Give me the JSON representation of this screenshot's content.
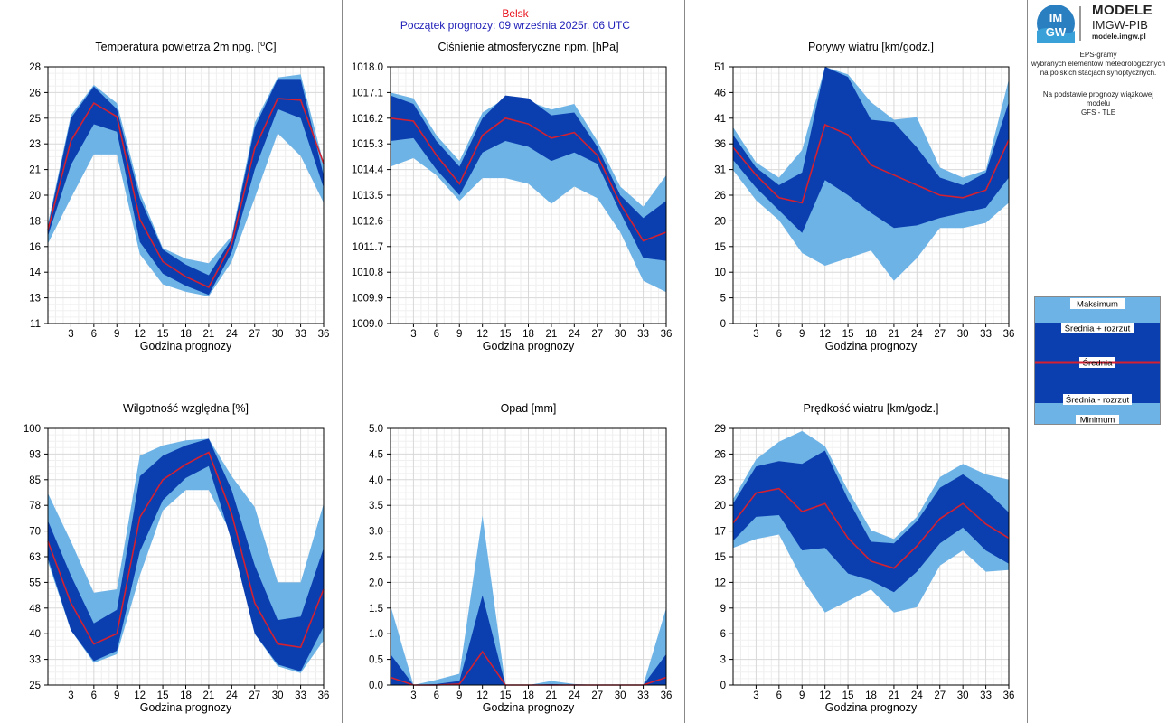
{
  "header": {
    "station": "Belsk",
    "forecast_start": "Początek prognozy: 09 września 2025r. 06 UTC"
  },
  "brand": {
    "logo_text_top": "IM",
    "logo_text_bottom": "GW",
    "title": "MODELE",
    "subtitle": "IMGW-PIB",
    "site": "modele.imgw.pl"
  },
  "description": {
    "lines": [
      "EPS-gramy",
      "wybranych elementów meteorologicznych",
      "na polskich stacjach  synoptycznych."
    ],
    "model_lines": [
      "Na podstawie prognozy wiązkowej modelu",
      "GFS - TLE"
    ]
  },
  "legend": {
    "items": [
      "Maksimum",
      "Średnia + rozrzut",
      "Średnia",
      "Średnia - rozrzut",
      "Minimum"
    ]
  },
  "colors": {
    "light_band": "#6eb3e6",
    "dark_band": "#0b3fb0",
    "mean_line": "#d42030",
    "station_text": "#e8101a",
    "start_text": "#1f1fb8",
    "panel_border": "#888888"
  },
  "chart_data": [
    {
      "type": "area",
      "title": "Temperatura powietrza 2m npg. [",
      "title_sup": "o",
      "title_suffix": "C]",
      "xlabel": "Godzina prognozy",
      "x": [
        0,
        3,
        6,
        9,
        12,
        15,
        18,
        21,
        24,
        27,
        30,
        33,
        36
      ],
      "xticks": [
        3,
        6,
        9,
        12,
        15,
        18,
        21,
        24,
        27,
        30,
        33,
        36
      ],
      "ylim": [
        11,
        28
      ],
      "yticks": [
        "11",
        "13",
        "14",
        "16",
        "18",
        "20",
        "21",
        "23",
        "25",
        "26",
        "28"
      ],
      "grid": true,
      "series": [
        {
          "name": "Maksimum",
          "values": [
            17.6,
            24.8,
            26.8,
            25.6,
            19.7,
            16.0,
            15.3,
            15.0,
            16.8,
            24.3,
            27.3,
            27.5,
            21.6
          ]
        },
        {
          "name": "Średnia + rozrzut",
          "values": [
            17.4,
            24.6,
            26.7,
            25.2,
            19.3,
            15.9,
            14.9,
            14.2,
            16.6,
            24.0,
            27.2,
            27.2,
            20.8
          ]
        },
        {
          "name": "Średnia",
          "values": [
            17.2,
            23.1,
            25.6,
            24.7,
            17.9,
            15.1,
            14.1,
            13.4,
            16.3,
            22.6,
            25.9,
            25.8,
            21.6
          ]
        },
        {
          "name": "Średnia - rozrzut",
          "values": [
            16.8,
            21.5,
            24.2,
            23.7,
            16.4,
            14.3,
            13.5,
            12.9,
            15.7,
            21.2,
            25.2,
            24.6,
            20.0
          ]
        },
        {
          "name": "Minimum",
          "values": [
            16.3,
            19.3,
            22.2,
            22.2,
            15.6,
            13.6,
            13.1,
            12.8,
            15.1,
            19.3,
            23.6,
            22.1,
            19.0
          ]
        }
      ]
    },
    {
      "type": "area",
      "title": "Ciśnienie atmosferyczne npm. [hPa]",
      "xlabel": "Godzina prognozy",
      "x": [
        0,
        3,
        6,
        9,
        12,
        15,
        18,
        21,
        24,
        27,
        30,
        33,
        36
      ],
      "xticks": [
        3,
        6,
        9,
        12,
        15,
        18,
        21,
        24,
        27,
        30,
        33,
        36
      ],
      "ylim": [
        1009.0,
        1018.0
      ],
      "yticks": [
        "1009.0",
        "1009.9",
        "1010.8",
        "1011.7",
        "1012.6",
        "1013.5",
        "1014.4",
        "1015.3",
        "1016.2",
        "1017.1",
        "1018.0"
      ],
      "grid": true,
      "series": [
        {
          "name": "Maksimum",
          "values": [
            1017.1,
            1016.9,
            1015.6,
            1014.7,
            1016.4,
            1016.9,
            1016.8,
            1016.5,
            1016.7,
            1015.4,
            1013.8,
            1013.1,
            1014.2
          ]
        },
        {
          "name": "Średnia + rozrzut",
          "values": [
            1017.0,
            1016.7,
            1015.4,
            1014.5,
            1016.2,
            1017.0,
            1016.9,
            1016.3,
            1016.4,
            1015.2,
            1013.5,
            1012.7,
            1013.3
          ]
        },
        {
          "name": "Średnia",
          "values": [
            1016.2,
            1016.1,
            1014.9,
            1013.9,
            1015.6,
            1016.2,
            1016.0,
            1015.5,
            1015.7,
            1014.9,
            1013.2,
            1011.9,
            1012.2
          ]
        },
        {
          "name": "Średnia - rozrzut",
          "values": [
            1015.4,
            1015.5,
            1014.4,
            1013.5,
            1015.0,
            1015.4,
            1015.2,
            1014.7,
            1015.0,
            1014.6,
            1012.9,
            1011.3,
            1011.2
          ]
        },
        {
          "name": "Minimum",
          "values": [
            1014.5,
            1014.8,
            1014.2,
            1013.3,
            1014.1,
            1014.1,
            1013.9,
            1013.2,
            1013.8,
            1013.4,
            1012.2,
            1010.5,
            1010.1
          ]
        }
      ]
    },
    {
      "type": "area",
      "title": "Porywy wiatru [km/godz.]",
      "xlabel": "Godzina prognozy",
      "x": [
        0,
        3,
        6,
        9,
        12,
        15,
        18,
        21,
        24,
        27,
        30,
        33,
        36
      ],
      "xticks": [
        3,
        6,
        9,
        12,
        15,
        18,
        21,
        24,
        27,
        30,
        33,
        36
      ],
      "ylim": [
        0,
        51
      ],
      "yticks": [
        "0",
        "5",
        "10",
        "15",
        "20",
        "26",
        "31",
        "36",
        "41",
        "46",
        "51"
      ],
      "grid": true,
      "series": [
        {
          "name": "Maksimum",
          "values": [
            39.0,
            32.0,
            29.0,
            34.5,
            51.0,
            49.5,
            44.0,
            40.5,
            41.0,
            31.0,
            29.0,
            30.5,
            48.5
          ]
        },
        {
          "name": "Średnia + rozrzut",
          "values": [
            37.5,
            31.0,
            27.5,
            30.0,
            51.0,
            49.0,
            40.5,
            40.0,
            35.0,
            29.0,
            27.5,
            30.0,
            44.0
          ]
        },
        {
          "name": "Średnia",
          "values": [
            35.0,
            29.5,
            25.0,
            24.0,
            39.5,
            37.5,
            31.5,
            29.5,
            27.5,
            25.5,
            25.0,
            26.5,
            36.5
          ]
        },
        {
          "name": "Średnia - rozrzut",
          "values": [
            32.5,
            27.0,
            22.5,
            18.0,
            28.5,
            25.5,
            22.0,
            19.0,
            19.5,
            21.0,
            22.0,
            23.0,
            29.0
          ]
        },
        {
          "name": "Minimum",
          "values": [
            30.5,
            24.5,
            20.5,
            14.0,
            11.5,
            13.0,
            14.5,
            8.5,
            13.0,
            19.0,
            19.0,
            20.0,
            24.0
          ]
        }
      ]
    },
    {
      "type": "area",
      "title": "Wilgotność względna [%]",
      "xlabel": "Godzina prognozy",
      "x": [
        0,
        3,
        6,
        9,
        12,
        15,
        18,
        21,
        24,
        27,
        30,
        33,
        36
      ],
      "xticks": [
        3,
        6,
        9,
        12,
        15,
        18,
        21,
        24,
        27,
        30,
        33,
        36
      ],
      "ylim": [
        25,
        100
      ],
      "yticks": [
        "25",
        "33",
        "40",
        "48",
        "55",
        "63",
        "70",
        "78",
        "85",
        "93",
        "100"
      ],
      "grid": true,
      "series": [
        {
          "name": "Maksimum",
          "values": [
            81,
            67,
            52,
            53,
            92,
            95,
            96.5,
            97,
            86,
            77,
            55,
            55,
            78
          ]
        },
        {
          "name": "Średnia + rozrzut",
          "values": [
            73,
            57,
            43,
            47,
            86,
            92,
            95,
            97,
            82,
            60,
            44,
            45,
            65
          ]
        },
        {
          "name": "Średnia",
          "values": [
            67,
            49,
            37,
            40,
            74,
            85,
            89.5,
            93,
            75,
            49,
            37,
            36,
            53
          ]
        },
        {
          "name": "Średnia - rozrzut",
          "values": [
            62,
            41,
            32,
            35,
            64,
            79,
            85.5,
            89,
            67,
            40,
            31,
            29,
            42
          ]
        },
        {
          "name": "Minimum",
          "values": [
            61,
            41,
            31.5,
            34,
            57,
            76,
            82,
            82,
            69,
            40,
            30.5,
            28.5,
            38
          ]
        }
      ]
    },
    {
      "type": "area",
      "title": "Opad [mm]",
      "xlabel": "Godzina prognozy",
      "x": [
        0,
        3,
        6,
        9,
        12,
        15,
        18,
        21,
        24,
        27,
        30,
        33,
        36
      ],
      "xticks": [
        3,
        6,
        9,
        12,
        15,
        18,
        21,
        24,
        27,
        30,
        33,
        36
      ],
      "ylim": [
        0,
        5
      ],
      "yticks": [
        "0.0",
        "0.5",
        "1.0",
        "1.5",
        "2.0",
        "2.5",
        "3.0",
        "3.5",
        "4.0",
        "4.5",
        "5.0"
      ],
      "grid": true,
      "series": [
        {
          "name": "Maksimum",
          "values": [
            1.55,
            0.0,
            0.1,
            0.22,
            3.3,
            0.0,
            0.0,
            0.08,
            0.02,
            0.0,
            0.0,
            0.0,
            1.5
          ]
        },
        {
          "name": "Średnia + rozrzut",
          "values": [
            0.6,
            0.0,
            0.02,
            0.08,
            1.75,
            0.0,
            0.0,
            0.02,
            0.0,
            0.0,
            0.0,
            0.0,
            0.6
          ]
        },
        {
          "name": "Średnia",
          "values": [
            0.15,
            0.0,
            0.0,
            0.02,
            0.65,
            0.0,
            0.0,
            0.0,
            0.0,
            0.0,
            0.0,
            0.0,
            0.15
          ]
        },
        {
          "name": "Średnia - rozrzut",
          "values": [
            0.0,
            0.0,
            0.0,
            0.0,
            0.0,
            0.0,
            0.0,
            0.0,
            0.0,
            0.0,
            0.0,
            0.0,
            0.0
          ]
        },
        {
          "name": "Minimum",
          "values": [
            0.0,
            0.0,
            0.0,
            0.0,
            0.0,
            0.0,
            0.0,
            0.0,
            0.0,
            0.0,
            0.0,
            0.0,
            0.0
          ]
        }
      ]
    },
    {
      "type": "area",
      "title": "Prędkość wiatru [km/godz.]",
      "xlabel": "Godzina prognozy",
      "x": [
        0,
        3,
        6,
        9,
        12,
        15,
        18,
        21,
        24,
        27,
        30,
        33,
        36
      ],
      "xticks": [
        3,
        6,
        9,
        12,
        15,
        18,
        21,
        24,
        27,
        30,
        33,
        36
      ],
      "ylim": [
        0,
        29
      ],
      "yticks": [
        "0",
        "3",
        "6",
        "9",
        "12",
        "15",
        "17",
        "20",
        "23",
        "26",
        "29"
      ],
      "grid": true,
      "series": [
        {
          "name": "Maksimum",
          "values": [
            21,
            25.5,
            27.5,
            28.7,
            27,
            22,
            17.5,
            16.5,
            19,
            23.5,
            25,
            23.8,
            23.2
          ]
        },
        {
          "name": "Średnia + rozrzut",
          "values": [
            20.5,
            24.7,
            25.3,
            25,
            26.5,
            21,
            16.2,
            16,
            18.5,
            22.3,
            23.8,
            22,
            19.5
          ]
        },
        {
          "name": "Średnia",
          "values": [
            18.3,
            21.7,
            22.2,
            19.6,
            20.5,
            16.6,
            14.0,
            13.2,
            15.7,
            18.8,
            20.5,
            18.2,
            16.6
          ]
        },
        {
          "name": "Średnia - rozrzut",
          "values": [
            16.3,
            19,
            19.2,
            15.2,
            15.5,
            12.6,
            11.8,
            10.5,
            12.8,
            16,
            17.8,
            15.2,
            13.7
          ]
        },
        {
          "name": "Minimum",
          "values": [
            15.5,
            16.5,
            17,
            12,
            8.2,
            9.5,
            10.8,
            8.2,
            8.8,
            13.5,
            15.2,
            12.8,
            13
          ]
        }
      ]
    }
  ]
}
